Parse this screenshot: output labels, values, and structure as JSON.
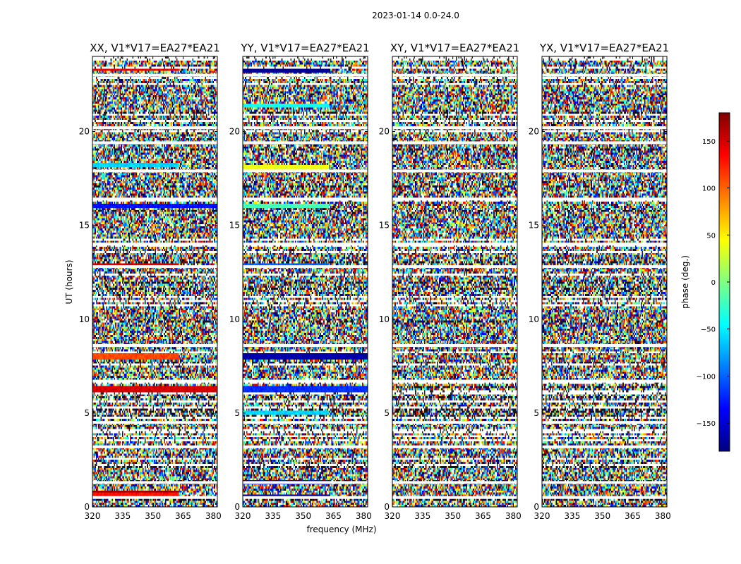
{
  "chart_data": {
    "type": "heatmap",
    "title": "2023-01-14 0.0-24.0",
    "xlabel": "frequency (MHz)",
    "ylabel": "UT (hours)",
    "colorbar_label": "phase (deg.)",
    "colormap": "jet",
    "xlim": [
      320,
      382
    ],
    "ylim": [
      0,
      24
    ],
    "zlim": [
      -180,
      180
    ],
    "x_ticks": [
      320,
      335,
      350,
      365,
      380
    ],
    "x_tick_labels": [
      "320",
      "335",
      "350",
      "365",
      "380"
    ],
    "y_ticks": [
      0,
      5,
      10,
      15,
      20
    ],
    "y_tick_labels": [
      "0",
      "5",
      "10",
      "15",
      "20"
    ],
    "colorbar_ticks": [
      150,
      100,
      50,
      0,
      -50,
      -100,
      -150
    ],
    "colorbar_tick_labels": [
      "150",
      "100",
      "50",
      "0",
      "−50",
      "−100",
      "−150"
    ],
    "panels": [
      {
        "title": "XX, V1*V17=EA27*EA21",
        "flagged_hours": [
          0.5,
          1.3,
          3.2,
          4.5,
          6.7,
          8.6,
          12.8,
          14.0,
          16.4,
          17.9,
          19.4,
          20.2,
          23.0
        ],
        "coherent_bands": [
          {
            "start": 0.6,
            "end": 0.75,
            "freq_end": 363,
            "phase": 130
          },
          {
            "start": 0.8,
            "end": 0.9,
            "freq_end": 363,
            "phase": 170
          },
          {
            "start": 6.1,
            "end": 6.4,
            "freq_end": 382,
            "phase": 150
          },
          {
            "start": 7.9,
            "end": 8.2,
            "freq_end": 363,
            "phase": 110
          },
          {
            "start": 12.8,
            "end": 12.95,
            "freq_end": 363,
            "phase": 150
          },
          {
            "start": 13.95,
            "end": 14.05,
            "freq_end": 363,
            "phase": 170
          },
          {
            "start": 15.9,
            "end": 16.1,
            "freq_end": 382,
            "phase": -130
          },
          {
            "start": 18.1,
            "end": 18.3,
            "freq_end": 363,
            "phase": -60
          },
          {
            "start": 23.2,
            "end": 23.35,
            "freq_end": 363,
            "phase": 140
          }
        ]
      },
      {
        "title": "YY, V1*V17=EA27*EA21",
        "flagged_hours": [
          0.5,
          1.3,
          3.2,
          4.5,
          6.7,
          8.6,
          12.8,
          14.0,
          16.4,
          17.9,
          19.4,
          20.2,
          23.0
        ],
        "coherent_bands": [
          {
            "start": 0.5,
            "end": 0.7,
            "freq_end": 363,
            "phase": -170
          },
          {
            "start": 1.15,
            "end": 1.4,
            "freq_end": 363,
            "phase": -150
          },
          {
            "start": 4.9,
            "end": 5.1,
            "freq_end": 363,
            "phase": -60
          },
          {
            "start": 6.1,
            "end": 6.4,
            "freq_end": 382,
            "phase": -120
          },
          {
            "start": 7.9,
            "end": 8.2,
            "freq_end": 382,
            "phase": -165
          },
          {
            "start": 12.8,
            "end": 12.95,
            "freq_end": 363,
            "phase": -100
          },
          {
            "start": 15.9,
            "end": 16.1,
            "freq_end": 363,
            "phase": -20
          },
          {
            "start": 17.9,
            "end": 18.2,
            "freq_end": 363,
            "phase": 40
          },
          {
            "start": 21.3,
            "end": 21.5,
            "freq_end": 363,
            "phase": -40
          },
          {
            "start": 23.1,
            "end": 23.3,
            "freq_end": 363,
            "phase": -175
          }
        ]
      },
      {
        "title": "XY, V1*V17=EA27*EA21",
        "flagged_hours": [
          0.5,
          1.3,
          3.2,
          4.5,
          6.7,
          8.6,
          12.8,
          14.0,
          16.4,
          17.9,
          19.4,
          20.2,
          23.0
        ],
        "coherent_bands": []
      },
      {
        "title": "YX, V1*V17=EA27*EA21",
        "flagged_hours": [
          0.5,
          1.3,
          3.2,
          4.5,
          6.7,
          8.6,
          12.8,
          14.0,
          16.4,
          17.9,
          19.4,
          20.2,
          23.0
        ],
        "coherent_bands": []
      }
    ]
  }
}
